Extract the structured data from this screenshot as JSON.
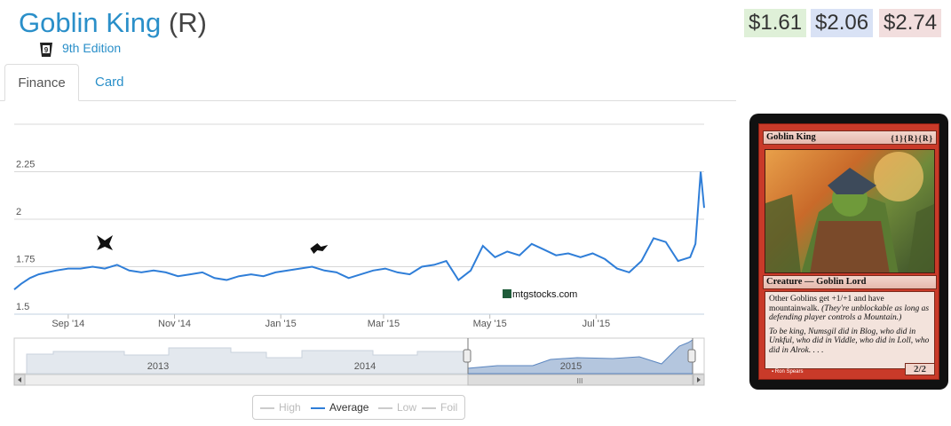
{
  "header": {
    "card_name": "Goblin King",
    "rarity": "(R)",
    "set_name": "9th Edition",
    "set_icon": "9th-edition-set-icon"
  },
  "prices": {
    "low": "$1.61",
    "average": "$2.06",
    "high": "$2.74",
    "colors": {
      "low": "#dff0d8",
      "average": "#d9e2f5",
      "high": "#f2dede"
    }
  },
  "tabs": [
    {
      "label": "Finance",
      "active": true
    },
    {
      "label": "Card",
      "active": false
    }
  ],
  "watermark": "mtgstocks.com",
  "chart_data": {
    "type": "line",
    "series": [
      {
        "name": "Average",
        "color": "#2f7ed8",
        "x": [
          "2014-08-01",
          "2014-08-05",
          "2014-08-10",
          "2014-08-15",
          "2014-08-20",
          "2014-08-25",
          "2014-09-01",
          "2014-09-08",
          "2014-09-15",
          "2014-09-22",
          "2014-09-29",
          "2014-10-06",
          "2014-10-13",
          "2014-10-20",
          "2014-10-27",
          "2014-11-03",
          "2014-11-10",
          "2014-11-17",
          "2014-11-24",
          "2014-12-01",
          "2014-12-08",
          "2014-12-15",
          "2014-12-22",
          "2014-12-29",
          "2015-01-05",
          "2015-01-12",
          "2015-01-19",
          "2015-01-26",
          "2015-02-02",
          "2015-02-09",
          "2015-02-16",
          "2015-02-23",
          "2015-03-02",
          "2015-03-09",
          "2015-03-16",
          "2015-03-23",
          "2015-03-30",
          "2015-04-06",
          "2015-04-13",
          "2015-04-20",
          "2015-04-27",
          "2015-05-04",
          "2015-05-11",
          "2015-05-18",
          "2015-05-25",
          "2015-06-01",
          "2015-06-08",
          "2015-06-15",
          "2015-06-22",
          "2015-06-29",
          "2015-07-06",
          "2015-07-13",
          "2015-07-20",
          "2015-07-27",
          "2015-08-03",
          "2015-08-10",
          "2015-08-17",
          "2015-08-24",
          "2015-08-27",
          "2015-08-30",
          "2015-09-01"
        ],
        "values": [
          1.63,
          1.66,
          1.69,
          1.71,
          1.72,
          1.73,
          1.74,
          1.74,
          1.75,
          1.74,
          1.76,
          1.73,
          1.72,
          1.73,
          1.72,
          1.7,
          1.71,
          1.72,
          1.69,
          1.68,
          1.7,
          1.71,
          1.7,
          1.72,
          1.73,
          1.74,
          1.75,
          1.73,
          1.72,
          1.69,
          1.71,
          1.73,
          1.74,
          1.72,
          1.71,
          1.75,
          1.76,
          1.78,
          1.68,
          1.73,
          1.86,
          1.8,
          1.83,
          1.81,
          1.87,
          1.84,
          1.81,
          1.82,
          1.8,
          1.82,
          1.79,
          1.74,
          1.72,
          1.78,
          1.9,
          1.88,
          1.78,
          1.8,
          1.87,
          2.25,
          2.06
        ]
      },
      {
        "name": "High",
        "color": "#cccccc",
        "values": []
      },
      {
        "name": "Low",
        "color": "#cccccc",
        "values": []
      },
      {
        "name": "Foil",
        "color": "#cccccc",
        "values": []
      }
    ],
    "yticks": [
      "1.5",
      "1.75",
      "2",
      "2.25"
    ],
    "ylim": [
      1.5,
      2.5
    ],
    "xticks": [
      "Sep '14",
      "Nov '14",
      "Jan '15",
      "Mar '15",
      "May '15",
      "Jul '15"
    ],
    "xlim": [
      "2014-08-01",
      "2015-09-01"
    ],
    "markers": [
      {
        "date": "2014-09-22",
        "icon": "khans-of-tarkir-set-icon"
      },
      {
        "date": "2015-01-23",
        "icon": "fate-reforged-set-icon"
      }
    ],
    "navigator": {
      "years": [
        "2013",
        "2014",
        "2015"
      ],
      "selected_range": [
        "2014-08-01",
        "2015-09-01"
      ]
    },
    "legend": [
      "High",
      "Average",
      "Low",
      "Foil"
    ]
  },
  "card_image": {
    "name": "Goblin King",
    "mana_cost": "{1}{R}{R}",
    "type_line": "Creature — Goblin Lord",
    "rules_text": "Other Goblins get +1/+1 and have mountainwalk.",
    "reminder_text": "(They're unblockable as long as defending player controls a Mountain.)",
    "flavor_text": "To be king, Numsgil did in Blog, who did in Unkful, who did in Viddle, who did in Loll, who did in Alrok. . . .",
    "power_toughness": "2/2",
    "artist": "Ron Spears"
  }
}
